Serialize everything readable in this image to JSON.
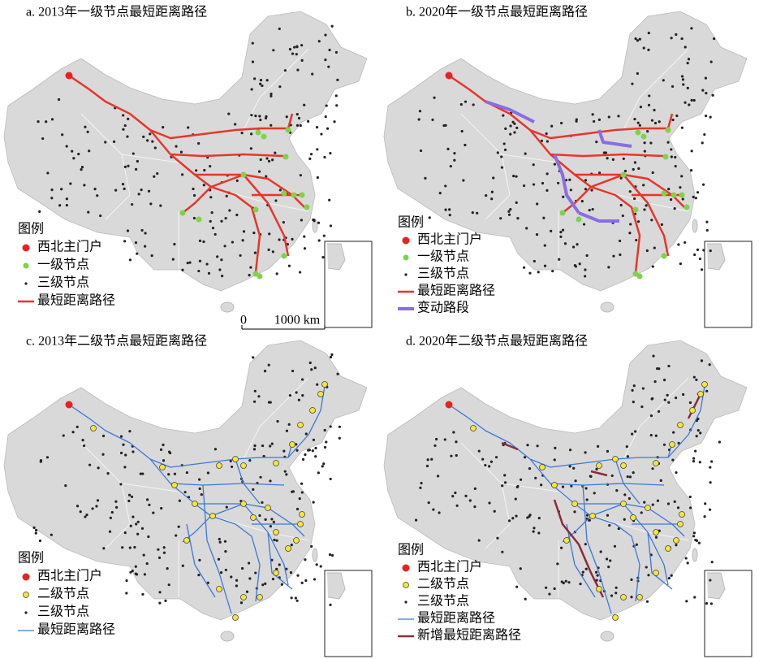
{
  "panels": [
    {
      "title": "a. 2013年一级节点最短距离路径",
      "legend": {
        "title": "图例",
        "items": [
          "西北主门户",
          "一级节点",
          "三级节点",
          "最短距离路径"
        ]
      }
    },
    {
      "title": "b. 2020年一级节点最短距离路径",
      "legend": {
        "title": "图例",
        "items": [
          "西北主门户",
          "一级节点",
          "三级节点",
          "最短距离路径",
          "变动路段"
        ]
      }
    },
    {
      "title": "c. 2013年二级节点最短距离路径",
      "legend": {
        "title": "图例",
        "items": [
          "西北主门户",
          "二级节点",
          "三级节点",
          "最短距离路径"
        ]
      }
    },
    {
      "title": "d. 2020年二级节点最短距离路径",
      "legend": {
        "title": "图例",
        "items": [
          "西北主门户",
          "二级节点",
          "三级节点",
          "最短距离路径",
          "新增最短距离路径"
        ]
      }
    }
  ],
  "scale_bar": {
    "start": "0",
    "end": "1000 km"
  }
}
